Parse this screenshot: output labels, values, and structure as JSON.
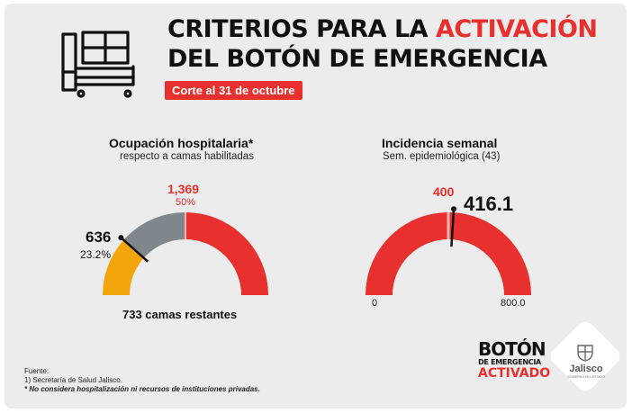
{
  "header": {
    "title_line1_pre": "CRITERIOS PARA LA ",
    "title_line1_accent": "ACTIVACIÓN",
    "title_line2": "DEL BOTÓN DE EMERGENCIA",
    "cutoff": "Corte al 31 de octubre"
  },
  "icons": {
    "header": "hospital-bed-icon"
  },
  "colors": {
    "accent": "#e8302f",
    "yellow": "#f2a60c",
    "gray": "#7f878c",
    "background": "#ececec"
  },
  "occupancy": {
    "title": "Ocupación hospitalaria*",
    "subtitle": "respecto a camas habilitadas",
    "threshold_value": "1,369",
    "threshold_pct": "50%",
    "current_value": "636",
    "current_pct": "23.2%",
    "remaining": "733 camas restantes",
    "gauge": {
      "current_fraction": 0.232,
      "threshold_fraction": 0.5
    }
  },
  "incidence": {
    "title": "Incidencia semanal",
    "subtitle": "Sem. epidemiológica (43)",
    "threshold_value": "400",
    "current_value": "416.1",
    "min_label": "0",
    "max_label": "800.0",
    "gauge": {
      "min": 0,
      "max": 800,
      "threshold": 400,
      "current": 416.1
    }
  },
  "source": {
    "label": "Fuente:",
    "line1": "1) Secretaría de Salud Jalisco.",
    "note": "* No considera hospitalización ni recursos de instituciones privadas."
  },
  "stamp": {
    "line1": "BOTÓN",
    "line2": "DE EMERGENCIA",
    "line3": "ACTIVADO"
  },
  "logo": {
    "name": "Jalisco",
    "sub": "GOBIERNO DEL ESTADO"
  }
}
